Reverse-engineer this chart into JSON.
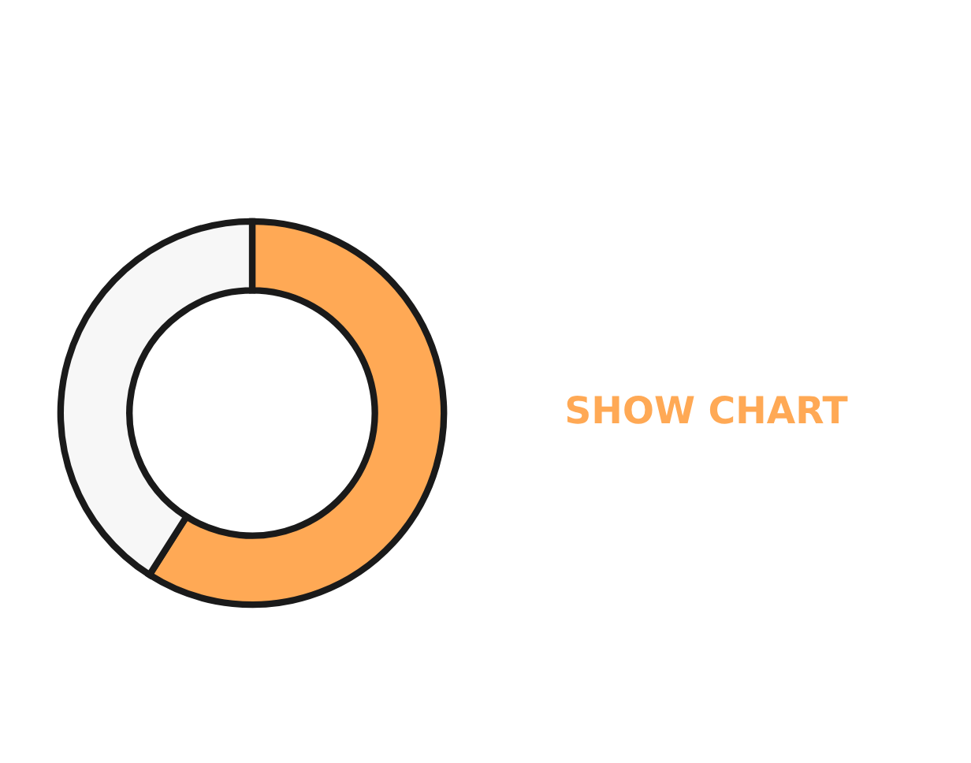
{
  "chart_data": {
    "type": "donut",
    "categories": [
      null,
      null
    ],
    "values": [
      59,
      41
    ],
    "colors": [
      "#ffa955",
      "#f7f7f7"
    ],
    "annotations": [
      "SHOW CHART"
    ]
  }
}
